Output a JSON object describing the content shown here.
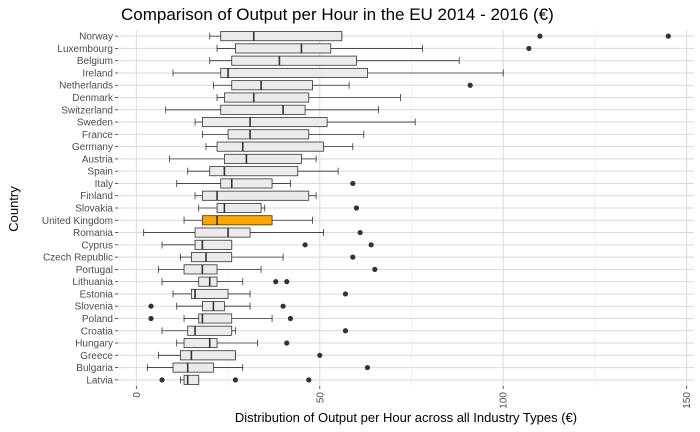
{
  "chart_data": {
    "type": "boxplot",
    "orientation": "horizontal",
    "title": "Comparison of Output per Hour in the EU 2014 - 2016 (€)",
    "xlabel": "Distribution of Output per Hour across all Industry Types (€)",
    "ylabel": "Country",
    "xlim": [
      -5,
      152
    ],
    "x_ticks": [
      0,
      50,
      100,
      150
    ],
    "grid": true,
    "highlight_color": "#FFA500",
    "box_fill": "#EBEBEB",
    "series": [
      {
        "country": "Norway",
        "whisker_low": 20,
        "q1": 23,
        "median": 32,
        "q3": 56,
        "whisker_high": 56,
        "outliers": [
          110,
          145
        ]
      },
      {
        "country": "Luxembourg",
        "whisker_low": 22,
        "q1": 27,
        "median": 45,
        "q3": 53,
        "whisker_high": 78,
        "outliers": [
          107
        ]
      },
      {
        "country": "Belgium",
        "whisker_low": 20,
        "q1": 26,
        "median": 39,
        "q3": 60,
        "whisker_high": 88,
        "outliers": []
      },
      {
        "country": "Ireland",
        "whisker_low": 10,
        "q1": 23,
        "median": 25,
        "q3": 63,
        "whisker_high": 100,
        "outliers": []
      },
      {
        "country": "Netherlands",
        "whisker_low": 21,
        "q1": 26,
        "median": 34,
        "q3": 48,
        "whisker_high": 58,
        "outliers": [
          91
        ]
      },
      {
        "country": "Denmark",
        "whisker_low": 22,
        "q1": 24,
        "median": 32,
        "q3": 47,
        "whisker_high": 72,
        "outliers": []
      },
      {
        "country": "Switzerland",
        "whisker_low": 8,
        "q1": 23,
        "median": 40,
        "q3": 46,
        "whisker_high": 66,
        "outliers": []
      },
      {
        "country": "Sweden",
        "whisker_low": 16,
        "q1": 18,
        "median": 31,
        "q3": 52,
        "whisker_high": 76,
        "outliers": []
      },
      {
        "country": "France",
        "whisker_low": 18,
        "q1": 25,
        "median": 31,
        "q3": 47,
        "whisker_high": 62,
        "outliers": []
      },
      {
        "country": "Germany",
        "whisker_low": 19,
        "q1": 22,
        "median": 29,
        "q3": 51,
        "whisker_high": 59,
        "outliers": []
      },
      {
        "country": "Austria",
        "whisker_low": 9,
        "q1": 24,
        "median": 30,
        "q3": 45,
        "whisker_high": 49,
        "outliers": []
      },
      {
        "country": "Spain",
        "whisker_low": 14,
        "q1": 20,
        "median": 24,
        "q3": 44,
        "whisker_high": 55,
        "outliers": []
      },
      {
        "country": "Italy",
        "whisker_low": 11,
        "q1": 23,
        "median": 26,
        "q3": 37,
        "whisker_high": 42,
        "outliers": [
          59
        ]
      },
      {
        "country": "Finland",
        "whisker_low": 16,
        "q1": 18,
        "median": 22,
        "q3": 47,
        "whisker_high": 49,
        "outliers": []
      },
      {
        "country": "Slovakia",
        "whisker_low": 17,
        "q1": 22,
        "median": 24,
        "q3": 34,
        "whisker_high": 35,
        "outliers": [
          60
        ]
      },
      {
        "country": "United Kingdom",
        "whisker_low": 13,
        "q1": 18,
        "median": 22,
        "q3": 37,
        "whisker_high": 48,
        "outliers": [],
        "highlight": true
      },
      {
        "country": "Romania",
        "whisker_low": 2,
        "q1": 16,
        "median": 25,
        "q3": 31,
        "whisker_high": 51,
        "outliers": [
          61
        ]
      },
      {
        "country": "Cyprus",
        "whisker_low": 7,
        "q1": 16,
        "median": 18,
        "q3": 26,
        "whisker_high": 26,
        "outliers": [
          46,
          64
        ]
      },
      {
        "country": "Czech Republic",
        "whisker_low": 12,
        "q1": 15,
        "median": 19,
        "q3": 26,
        "whisker_high": 40,
        "outliers": [
          59
        ]
      },
      {
        "country": "Portugal",
        "whisker_low": 6,
        "q1": 13,
        "median": 18,
        "q3": 22,
        "whisker_high": 34,
        "outliers": [
          65
        ]
      },
      {
        "country": "Lithuania",
        "whisker_low": 7,
        "q1": 17,
        "median": 20,
        "q3": 22,
        "whisker_high": 29,
        "outliers": [
          38,
          41
        ]
      },
      {
        "country": "Estonia",
        "whisker_low": 10,
        "q1": 15,
        "median": 16,
        "q3": 25,
        "whisker_high": 31,
        "outliers": [
          57
        ]
      },
      {
        "country": "Slovenia",
        "whisker_low": 11,
        "q1": 18,
        "median": 21,
        "q3": 24,
        "whisker_high": 31,
        "outliers": [
          4,
          40
        ]
      },
      {
        "country": "Poland",
        "whisker_low": 13,
        "q1": 17,
        "median": 18,
        "q3": 26,
        "whisker_high": 37,
        "outliers": [
          4,
          42
        ]
      },
      {
        "country": "Croatia",
        "whisker_low": 7,
        "q1": 14,
        "median": 16,
        "q3": 26,
        "whisker_high": 27,
        "outliers": [
          57
        ]
      },
      {
        "country": "Hungary",
        "whisker_low": 11,
        "q1": 13,
        "median": 20,
        "q3": 22,
        "whisker_high": 33,
        "outliers": [
          41
        ]
      },
      {
        "country": "Greece",
        "whisker_low": 6,
        "q1": 12,
        "median": 15,
        "q3": 27,
        "whisker_high": 27,
        "outliers": [
          50
        ]
      },
      {
        "country": "Bulgaria",
        "whisker_low": 3,
        "q1": 10,
        "median": 14,
        "q3": 21,
        "whisker_high": 29,
        "outliers": [
          63
        ]
      },
      {
        "country": "Latvia",
        "whisker_low": 12,
        "q1": 13,
        "median": 14,
        "q3": 17,
        "whisker_high": 17,
        "outliers": [
          7,
          27,
          47
        ]
      }
    ]
  }
}
